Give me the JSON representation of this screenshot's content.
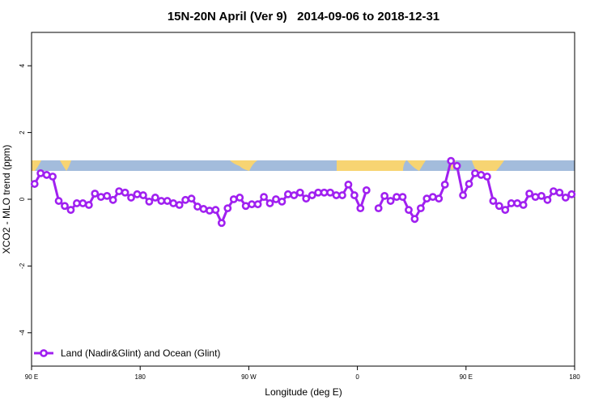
{
  "chart_data": {
    "type": "line",
    "title": "15N-20N April (Ver 9)   2014-09-06 to 2018-12-31",
    "xlabel": "Longitude (deg E)",
    "ylabel": "XCO2 - MLO trend (ppm)",
    "xlim": [
      90,
      540
    ],
    "ylim": [
      -5,
      5
    ],
    "xticks": [
      {
        "value": 90,
        "label": "90 E"
      },
      {
        "value": 180,
        "label": "180"
      },
      {
        "value": 270,
        "label": "90 W"
      },
      {
        "value": 360,
        "label": "0"
      },
      {
        "value": 450,
        "label": "90 E"
      },
      {
        "value": 540,
        "label": "180"
      }
    ],
    "yticks": [
      -4,
      -2,
      0,
      2,
      4
    ],
    "legend": "bottom-left",
    "x": [
      92.5,
      97.5,
      102.5,
      107.5,
      112.5,
      117.5,
      122.5,
      127.5,
      132.5,
      137.5,
      142.5,
      147.5,
      152.5,
      157.5,
      162.5,
      167.5,
      172.5,
      177.5,
      182.5,
      187.5,
      192.5,
      197.5,
      202.5,
      207.5,
      212.5,
      217.5,
      222.5,
      227.5,
      232.5,
      237.5,
      242.5,
      247.5,
      252.5,
      257.5,
      262.5,
      267.5,
      272.5,
      277.5,
      282.5,
      287.5,
      292.5,
      297.5,
      302.5,
      307.5,
      312.5,
      317.5,
      322.5,
      327.5,
      332.5,
      337.5,
      342.5,
      347.5,
      352.5,
      357.5,
      362.5,
      367.5,
      372.5,
      377.5,
      382.5,
      387.5,
      392.5,
      397.5,
      402.5,
      407.5,
      412.5,
      417.5,
      422.5,
      427.5,
      432.5,
      437.5,
      442.5,
      447.5,
      452.5,
      457.5,
      462.5,
      467.5,
      472.5,
      477.5,
      482.5,
      487.5,
      492.5,
      497.5,
      502.5,
      507.5,
      512.5,
      517.5,
      522.5,
      527.5,
      532.5,
      537.5
    ],
    "series": [
      {
        "name": "Land (Nadir&Glint) and Ocean (Glint)",
        "color": "#a020f0",
        "values": [
          0.46,
          0.78,
          0.73,
          0.68,
          -0.05,
          -0.2,
          -0.32,
          -0.12,
          -0.12,
          -0.17,
          0.17,
          0.07,
          0.1,
          -0.02,
          0.24,
          0.2,
          0.05,
          0.15,
          0.12,
          -0.07,
          0.05,
          -0.05,
          -0.05,
          -0.12,
          -0.17,
          -0.02,
          0.02,
          -0.22,
          -0.29,
          -0.34,
          -0.32,
          -0.71,
          -0.27,
          0,
          0.05,
          -0.2,
          -0.15,
          -0.15,
          0.07,
          -0.12,
          0,
          -0.07,
          0.15,
          0.12,
          0.2,
          0.02,
          0.12,
          0.2,
          0.2,
          0.2,
          0.12,
          0.12,
          0.44,
          0.12,
          -0.27,
          0.27,
          null,
          -0.27,
          0.1,
          -0.05,
          0.07,
          0.07,
          -0.32,
          -0.59,
          -0.27,
          0.02,
          0.07,
          0.02,
          0.44,
          1.15,
          1.0,
          0.12,
          0.46,
          0.78,
          0.73,
          0.68,
          -0.05,
          -0.2,
          -0.32,
          -0.12,
          -0.12,
          -0.17,
          0.17,
          0.07,
          0.1,
          -0.02,
          0.24,
          0.2,
          0.05,
          0.15
        ]
      }
    ]
  }
}
